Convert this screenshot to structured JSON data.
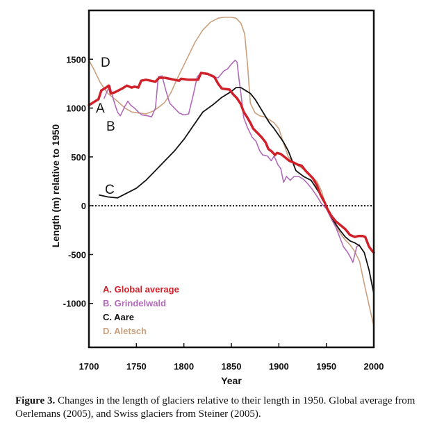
{
  "chart_data": {
    "type": "line",
    "xlabel": "Year",
    "ylabel": "Length (m) relative to 1950",
    "xlim": [
      1700,
      2000
    ],
    "ylim": [
      -1450,
      2000
    ],
    "xticks": [
      1700,
      1750,
      1800,
      1850,
      1900,
      1950,
      2000
    ],
    "yticks": [
      1500,
      1000,
      500,
      0,
      -500,
      -1000
    ],
    "zero_line": "dotted",
    "legend": [
      "A. Global average",
      "B. Grindelwald",
      "C. Aare",
      "D. Aletsch"
    ],
    "legend_placement": "bottom-left",
    "curve_labels": [
      "A",
      "B",
      "C",
      "D"
    ],
    "series": [
      {
        "name": "A. Global average",
        "color": "#d0202a",
        "width": 3.5,
        "points": [
          [
            1700,
            1030
          ],
          [
            1705,
            1060
          ],
          [
            1710,
            1090
          ],
          [
            1713,
            1180
          ],
          [
            1718,
            1210
          ],
          [
            1721,
            1230
          ],
          [
            1723,
            1150
          ],
          [
            1727,
            1160
          ],
          [
            1735,
            1200
          ],
          [
            1740,
            1230
          ],
          [
            1745,
            1210
          ],
          [
            1748,
            1220
          ],
          [
            1752,
            1210
          ],
          [
            1755,
            1280
          ],
          [
            1760,
            1290
          ],
          [
            1765,
            1280
          ],
          [
            1770,
            1270
          ],
          [
            1774,
            1310
          ],
          [
            1780,
            1310
          ],
          [
            1790,
            1290
          ],
          [
            1795,
            1280
          ],
          [
            1797,
            1300
          ],
          [
            1805,
            1290
          ],
          [
            1815,
            1290
          ],
          [
            1818,
            1360
          ],
          [
            1825,
            1350
          ],
          [
            1832,
            1320
          ],
          [
            1836,
            1250
          ],
          [
            1840,
            1200
          ],
          [
            1848,
            1190
          ],
          [
            1852,
            1140
          ],
          [
            1856,
            1100
          ],
          [
            1860,
            1040
          ],
          [
            1863,
            960
          ],
          [
            1867,
            900
          ],
          [
            1870,
            850
          ],
          [
            1873,
            790
          ],
          [
            1878,
            740
          ],
          [
            1882,
            700
          ],
          [
            1886,
            650
          ],
          [
            1889,
            580
          ],
          [
            1892,
            560
          ],
          [
            1896,
            520
          ],
          [
            1898,
            540
          ],
          [
            1902,
            530
          ],
          [
            1906,
            500
          ],
          [
            1911,
            460
          ],
          [
            1916,
            440
          ],
          [
            1920,
            420
          ],
          [
            1924,
            410
          ],
          [
            1928,
            360
          ],
          [
            1932,
            320
          ],
          [
            1936,
            280
          ],
          [
            1940,
            210
          ],
          [
            1944,
            110
          ],
          [
            1948,
            40
          ],
          [
            1951,
            -30
          ],
          [
            1955,
            -100
          ],
          [
            1960,
            -160
          ],
          [
            1965,
            -200
          ],
          [
            1970,
            -240
          ],
          [
            1975,
            -300
          ],
          [
            1980,
            -320
          ],
          [
            1984,
            -310
          ],
          [
            1988,
            -310
          ],
          [
            1991,
            -320
          ],
          [
            1995,
            -420
          ],
          [
            1998,
            -460
          ],
          [
            2000,
            -480
          ]
        ]
      },
      {
        "name": "B. Grindelwald",
        "color": "#b06ab8",
        "width": 1.6,
        "points": [
          [
            1716,
            1100
          ],
          [
            1719,
            1170
          ],
          [
            1722,
            1230
          ],
          [
            1726,
            1080
          ],
          [
            1730,
            960
          ],
          [
            1733,
            920
          ],
          [
            1738,
            1020
          ],
          [
            1741,
            1070
          ],
          [
            1744,
            1030
          ],
          [
            1748,
            1000
          ],
          [
            1752,
            960
          ],
          [
            1756,
            930
          ],
          [
            1762,
            920
          ],
          [
            1766,
            910
          ],
          [
            1770,
            1000
          ],
          [
            1773,
            1320
          ],
          [
            1777,
            1330
          ],
          [
            1781,
            1180
          ],
          [
            1785,
            1050
          ],
          [
            1790,
            1000
          ],
          [
            1795,
            950
          ],
          [
            1800,
            930
          ],
          [
            1805,
            940
          ],
          [
            1810,
            1140
          ],
          [
            1814,
            1320
          ],
          [
            1818,
            1360
          ],
          [
            1824,
            1350
          ],
          [
            1830,
            1320
          ],
          [
            1836,
            1310
          ],
          [
            1842,
            1380
          ],
          [
            1846,
            1400
          ],
          [
            1850,
            1450
          ],
          [
            1854,
            1490
          ],
          [
            1856,
            1470
          ],
          [
            1858,
            1300
          ],
          [
            1860,
            1150
          ],
          [
            1863,
            900
          ],
          [
            1867,
            800
          ],
          [
            1872,
            700
          ],
          [
            1876,
            660
          ],
          [
            1880,
            560
          ],
          [
            1883,
            520
          ],
          [
            1888,
            510
          ],
          [
            1892,
            460
          ],
          [
            1895,
            510
          ],
          [
            1899,
            420
          ],
          [
            1902,
            380
          ],
          [
            1905,
            240
          ],
          [
            1908,
            300
          ],
          [
            1912,
            260
          ],
          [
            1916,
            300
          ],
          [
            1921,
            300
          ],
          [
            1926,
            270
          ],
          [
            1930,
            230
          ],
          [
            1935,
            170
          ],
          [
            1940,
            100
          ],
          [
            1945,
            20
          ],
          [
            1950,
            -30
          ],
          [
            1955,
            -130
          ],
          [
            1960,
            -220
          ],
          [
            1964,
            -320
          ],
          [
            1968,
            -420
          ],
          [
            1972,
            -470
          ],
          [
            1975,
            -520
          ],
          [
            1978,
            -580
          ],
          [
            1982,
            -420
          ],
          [
            1985,
            -400
          ]
        ]
      },
      {
        "name": "C. Aare",
        "color": "#111111",
        "width": 1.8,
        "points": [
          [
            1711,
            110
          ],
          [
            1720,
            90
          ],
          [
            1730,
            80
          ],
          [
            1740,
            130
          ],
          [
            1750,
            180
          ],
          [
            1760,
            260
          ],
          [
            1770,
            360
          ],
          [
            1780,
            460
          ],
          [
            1790,
            560
          ],
          [
            1800,
            680
          ],
          [
            1810,
            820
          ],
          [
            1820,
            960
          ],
          [
            1830,
            1030
          ],
          [
            1840,
            1110
          ],
          [
            1850,
            1170
          ],
          [
            1855,
            1210
          ],
          [
            1860,
            1210
          ],
          [
            1865,
            1180
          ],
          [
            1870,
            1150
          ],
          [
            1875,
            1090
          ],
          [
            1880,
            1010
          ],
          [
            1885,
            930
          ],
          [
            1890,
            850
          ],
          [
            1895,
            790
          ],
          [
            1900,
            720
          ],
          [
            1905,
            650
          ],
          [
            1910,
            560
          ],
          [
            1914,
            460
          ],
          [
            1918,
            360
          ],
          [
            1922,
            330
          ],
          [
            1926,
            300
          ],
          [
            1930,
            280
          ],
          [
            1934,
            260
          ],
          [
            1938,
            200
          ],
          [
            1942,
            140
          ],
          [
            1946,
            60
          ],
          [
            1950,
            0
          ],
          [
            1955,
            -110
          ],
          [
            1960,
            -190
          ],
          [
            1965,
            -260
          ],
          [
            1970,
            -320
          ],
          [
            1975,
            -360
          ],
          [
            1980,
            -380
          ],
          [
            1985,
            -410
          ],
          [
            1990,
            -480
          ],
          [
            1995,
            -660
          ],
          [
            2000,
            -900
          ]
        ]
      },
      {
        "name": "D. Aletsch",
        "color": "#c9a07d",
        "width": 1.6,
        "points": [
          [
            1700,
            1490
          ],
          [
            1705,
            1400
          ],
          [
            1712,
            1260
          ],
          [
            1720,
            1150
          ],
          [
            1730,
            1070
          ],
          [
            1738,
            1000
          ],
          [
            1745,
            960
          ],
          [
            1752,
            950
          ],
          [
            1760,
            940
          ],
          [
            1768,
            970
          ],
          [
            1775,
            1020
          ],
          [
            1780,
            1060
          ],
          [
            1786,
            1150
          ],
          [
            1792,
            1280
          ],
          [
            1798,
            1400
          ],
          [
            1805,
            1540
          ],
          [
            1812,
            1680
          ],
          [
            1820,
            1800
          ],
          [
            1828,
            1880
          ],
          [
            1836,
            1920
          ],
          [
            1842,
            1930
          ],
          [
            1850,
            1930
          ],
          [
            1855,
            1920
          ],
          [
            1860,
            1870
          ],
          [
            1864,
            1760
          ],
          [
            1867,
            1450
          ],
          [
            1870,
            1050
          ],
          [
            1875,
            950
          ],
          [
            1880,
            920
          ],
          [
            1885,
            910
          ],
          [
            1890,
            880
          ],
          [
            1895,
            850
          ],
          [
            1900,
            790
          ],
          [
            1905,
            640
          ],
          [
            1910,
            500
          ],
          [
            1915,
            450
          ],
          [
            1920,
            410
          ],
          [
            1925,
            380
          ],
          [
            1930,
            340
          ],
          [
            1935,
            290
          ],
          [
            1940,
            250
          ],
          [
            1945,
            150
          ],
          [
            1950,
            -10
          ],
          [
            1955,
            -110
          ],
          [
            1960,
            -210
          ],
          [
            1965,
            -290
          ],
          [
            1970,
            -350
          ],
          [
            1975,
            -400
          ],
          [
            1980,
            -470
          ],
          [
            1985,
            -570
          ],
          [
            1990,
            -800
          ],
          [
            1995,
            -1020
          ],
          [
            2000,
            -1230
          ]
        ]
      }
    ]
  },
  "caption": {
    "label": "Figure 3.",
    "text": " Changes in the length of glaciers relative to their length in 1950. Global average from Oerlemans (2005), and Swiss glaciers from Steiner (2005)."
  }
}
